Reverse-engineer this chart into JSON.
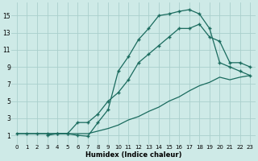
{
  "xlabel": "Humidex (Indice chaleur)",
  "background_color": "#ceeae7",
  "grid_color": "#aacfcc",
  "line_color": "#1a6b5e",
  "xlim": [
    -0.5,
    23.5
  ],
  "ylim": [
    0.0,
    16.5
  ],
  "xticks": [
    0,
    1,
    2,
    3,
    4,
    5,
    6,
    7,
    8,
    9,
    10,
    11,
    12,
    13,
    14,
    15,
    16,
    17,
    18,
    19,
    20,
    21,
    22,
    23
  ],
  "yticks": [
    1,
    3,
    5,
    7,
    9,
    11,
    13,
    15
  ],
  "line1_x": [
    0,
    1,
    2,
    3,
    4,
    5,
    6,
    7,
    8,
    9,
    10,
    11,
    12,
    13,
    14,
    15,
    16,
    17,
    18,
    19,
    20,
    21,
    22,
    23
  ],
  "line1_y": [
    1.2,
    1.2,
    1.2,
    1.2,
    1.2,
    1.2,
    1.0,
    0.9,
    2.5,
    4.0,
    8.5,
    10.2,
    12.2,
    13.5,
    15.0,
    15.2,
    15.5,
    15.7,
    15.2,
    13.5,
    9.5,
    9.0,
    8.5,
    8.0
  ],
  "line2_x": [
    3,
    4,
    5,
    6,
    7,
    8,
    9,
    10,
    11,
    12,
    13,
    14,
    15,
    16,
    17,
    18,
    19,
    20,
    21,
    22,
    23
  ],
  "line2_y": [
    1.0,
    1.2,
    1.2,
    2.5,
    2.5,
    3.5,
    5.0,
    6.0,
    7.5,
    9.5,
    10.5,
    11.5,
    12.5,
    13.5,
    13.5,
    14.0,
    12.5,
    12.0,
    9.5,
    9.5,
    9.0
  ],
  "line3_x": [
    0,
    1,
    2,
    3,
    4,
    5,
    6,
    7,
    8,
    9,
    10,
    11,
    12,
    13,
    14,
    15,
    16,
    17,
    18,
    19,
    20,
    21,
    22,
    23
  ],
  "line3_y": [
    1.2,
    1.2,
    1.2,
    1.2,
    1.2,
    1.2,
    1.2,
    1.2,
    1.5,
    1.8,
    2.2,
    2.8,
    3.2,
    3.8,
    4.3,
    5.0,
    5.5,
    6.2,
    6.8,
    7.2,
    7.8,
    7.5,
    7.8,
    8.0
  ]
}
